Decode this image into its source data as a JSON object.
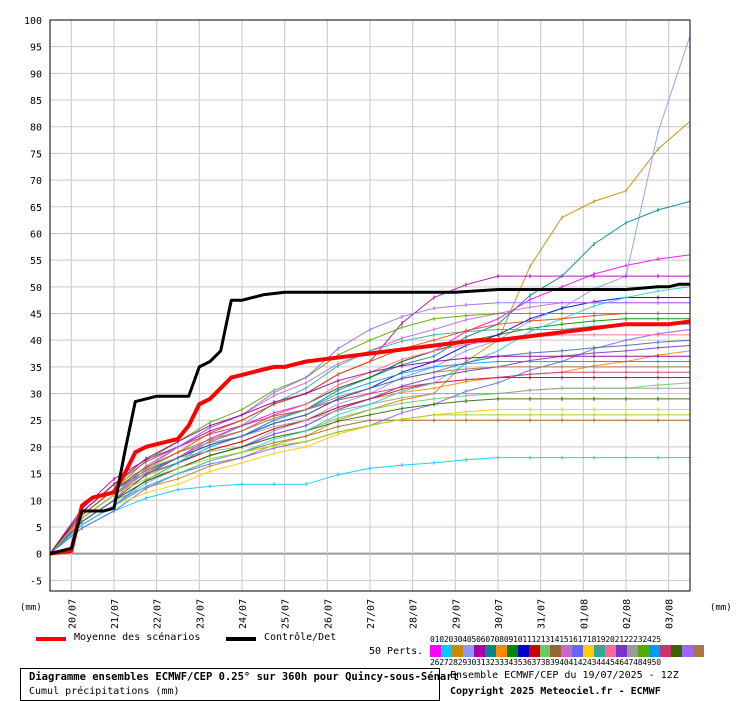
{
  "chart_data": {
    "type": "line",
    "title": "Diagramme ensembles ECMWF/CEP 0.25° sur 360h pour Quincy-sous-Sénart",
    "subtitle": "Cumul précipitations (mm)",
    "xlabel": "",
    "ylabel": "(mm)",
    "ylabel_right": "(mm)",
    "ylim": [
      -7,
      100
    ],
    "y_ticks": [
      -5,
      0,
      5,
      10,
      15,
      20,
      25,
      30,
      35,
      40,
      45,
      50,
      55,
      60,
      65,
      70,
      75,
      80,
      85,
      90,
      95,
      100
    ],
    "x_unit": "step (6h from 19/07 12Z)",
    "xlim": [
      0,
      60
    ],
    "x_tick_labels": [
      "20/07",
      "21/07",
      "22/07",
      "23/07",
      "24/07",
      "25/07",
      "26/07",
      "27/07",
      "28/07",
      "29/07",
      "30/07",
      "31/07",
      "01/08",
      "02/08",
      "03/08"
    ],
    "x_tick_positions": [
      2,
      6,
      10,
      14,
      18,
      22,
      26,
      30,
      34,
      38,
      42,
      46,
      50,
      54,
      58
    ],
    "grid": true,
    "series": [
      {
        "name": "Moyenne des scénarios",
        "color": "#ff0000",
        "width": 4,
        "x": [
          0,
          2,
          3,
          4,
          5,
          6,
          7,
          8,
          9,
          10,
          11,
          12,
          13,
          14,
          15,
          16,
          17,
          18,
          19,
          20,
          21,
          22,
          23,
          24,
          26,
          28,
          30,
          32,
          34,
          36,
          38,
          40,
          42,
          44,
          46,
          48,
          50,
          52,
          54,
          56,
          58,
          60
        ],
        "values": [
          0,
          0.5,
          9,
          10.5,
          11,
          11.5,
          15,
          19,
          20,
          20.5,
          21,
          21.5,
          24,
          28,
          29,
          31,
          33,
          33.5,
          34,
          34.5,
          35,
          35,
          35.5,
          36,
          36.5,
          37,
          37.5,
          38,
          38.5,
          39,
          39.5,
          40,
          40,
          40.5,
          41,
          41.5,
          42,
          42.5,
          43,
          43,
          43,
          43.5
        ]
      },
      {
        "name": "Contrôle/Det",
        "color": "#000000",
        "width": 3,
        "x": [
          0,
          2,
          3,
          4,
          5,
          6,
          7,
          8,
          9,
          10,
          11,
          12,
          13,
          14,
          15,
          16,
          17,
          18,
          19,
          20,
          22,
          24,
          26,
          30,
          34,
          38,
          42,
          46,
          50,
          54,
          57,
          58,
          59,
          60
        ],
        "values": [
          0,
          1,
          8,
          8,
          8,
          8.5,
          19,
          28.5,
          29,
          29.5,
          29.5,
          29.5,
          29.5,
          35,
          36,
          38,
          47.5,
          47.5,
          48,
          48.5,
          49,
          49,
          49,
          49,
          49,
          49,
          49.5,
          49.5,
          49.5,
          49.5,
          50,
          50,
          50.5,
          50.5
        ]
      }
    ],
    "members": [
      {
        "color": "#ff00ff",
        "finals": [
          2,
          12,
          18,
          24,
          28,
          33,
          38,
          44,
          50,
          54,
          56
        ]
      },
      {
        "color": "#00ccff",
        "finals": [
          1.5,
          8,
          12,
          13,
          13,
          16,
          17,
          18,
          18,
          18,
          18
        ]
      },
      {
        "color": "#cc8800",
        "finals": [
          1,
          10,
          14,
          18,
          22,
          27,
          30,
          40,
          63,
          68,
          81
        ]
      },
      {
        "color": "#8899ff",
        "finals": [
          1,
          9,
          16,
          20,
          25,
          30,
          35,
          40,
          46,
          52,
          97
        ]
      },
      {
        "color": "#aa00aa",
        "finals": [
          2,
          14,
          20,
          25,
          30,
          36,
          48,
          52,
          52,
          52,
          52
        ]
      },
      {
        "color": "#008888",
        "finals": [
          1,
          12,
          18,
          22,
          27,
          33,
          37,
          43,
          52,
          62,
          66
        ]
      },
      {
        "color": "#ff8800",
        "finals": [
          2,
          11,
          17,
          21,
          25,
          29,
          31,
          33,
          34,
          36,
          38
        ]
      },
      {
        "color": "#008800",
        "finals": [
          1,
          10,
          18,
          23,
          28,
          33,
          38,
          41,
          43,
          44,
          44
        ]
      },
      {
        "color": "#0000cc",
        "finals": [
          2,
          11,
          18,
          22,
          26,
          31,
          36,
          41,
          46,
          48,
          48
        ]
      },
      {
        "color": "#cc0000",
        "finals": [
          1,
          12,
          17,
          21,
          25,
          29,
          32,
          33,
          33,
          33,
          33
        ]
      },
      {
        "color": "#66cc66",
        "finals": [
          2,
          13,
          18,
          20,
          23,
          27,
          29,
          30,
          31,
          31,
          32
        ]
      },
      {
        "color": "#996633",
        "finals": [
          1,
          9,
          15,
          19,
          22,
          25,
          25,
          25,
          25,
          25,
          25
        ]
      },
      {
        "color": "#cc66cc",
        "finals": [
          2,
          10,
          20,
          26,
          32,
          38,
          42,
          45,
          47,
          47,
          47
        ]
      },
      {
        "color": "#6666ff",
        "finals": [
          1,
          8,
          15,
          18,
          21,
          24,
          28,
          32,
          36,
          40,
          42
        ]
      },
      {
        "color": "#ffcc00",
        "finals": [
          1,
          9,
          13,
          17,
          20,
          24,
          26,
          27,
          27,
          27,
          27
        ]
      },
      {
        "color": "#33aa99",
        "finals": [
          2,
          12,
          17,
          24,
          31,
          38,
          41,
          42,
          42,
          43,
          43
        ]
      },
      {
        "color": "#ff6699",
        "finals": [
          1,
          11,
          18,
          23,
          28,
          34,
          38,
          40,
          41,
          41,
          41
        ]
      },
      {
        "color": "#7733cc",
        "finals": [
          2,
          10,
          16,
          20,
          24,
          29,
          33,
          35,
          37,
          38,
          39
        ]
      },
      {
        "color": "#999999",
        "finals": [
          1,
          11,
          19,
          22,
          25,
          28,
          30,
          30,
          31,
          31,
          31
        ]
      },
      {
        "color": "#55aa00",
        "finals": [
          2,
          12,
          21,
          27,
          33,
          40,
          44,
          45,
          45,
          45,
          45
        ]
      },
      {
        "color": "#0099ff",
        "finals": [
          1,
          9,
          17,
          22,
          27,
          32,
          35,
          36,
          36,
          36,
          36
        ]
      },
      {
        "color": "#cc3366",
        "finals": [
          2,
          13,
          20,
          24,
          27,
          30,
          32,
          33,
          34,
          34,
          34
        ]
      },
      {
        "color": "#336600",
        "finals": [
          1,
          10,
          16,
          20,
          23,
          26,
          28,
          29,
          29,
          29,
          29
        ]
      },
      {
        "color": "#9966ff",
        "finals": [
          1,
          11,
          20,
          26,
          33,
          42,
          46,
          47,
          47,
          47,
          47
        ]
      },
      {
        "color": "#aa7744",
        "finals": [
          2,
          12,
          19,
          23,
          27,
          31,
          34,
          35,
          35,
          35,
          35
        ]
      },
      {
        "color": "#33cccc",
        "finals": [
          1,
          9,
          15,
          19,
          23,
          28,
          32,
          38,
          44,
          48,
          50
        ]
      },
      {
        "color": "#ee4400",
        "finals": [
          2,
          12,
          19,
          25,
          30,
          36,
          40,
          43,
          44,
          45,
          45
        ]
      },
      {
        "color": "#4466aa",
        "finals": [
          1,
          10,
          18,
          22,
          26,
          31,
          34,
          37,
          38,
          39,
          40
        ]
      },
      {
        "color": "#aacc00",
        "finals": [
          2,
          11,
          16,
          19,
          21,
          24,
          26,
          26,
          26,
          26,
          26
        ]
      },
      {
        "color": "#880088",
        "finals": [
          1,
          13,
          21,
          26,
          30,
          34,
          36,
          37,
          37,
          37,
          37
        ]
      }
    ]
  },
  "legend": {
    "mean_label": "Moyenne des scénarios",
    "mean_color": "#ff0000",
    "control_label": "Contrôle/Det",
    "control_color": "#000000",
    "perts_label": "50 Perts.",
    "perts_top": "01020304050607080910111213141516171819202122232425",
    "perts_bottom": "26272829303132333435363738394041424344454647484950"
  },
  "footer": {
    "title": "Diagramme ensembles ECMWF/CEP 0.25° sur 360h pour Quincy-sous-Sénart",
    "subtitle": "Cumul précipitations (mm)",
    "run": "Ensemble ECMWF/CEP du 19/07/2025 - 12Z",
    "copyright": "Copyright 2025 Meteociel.fr - ECMWF"
  }
}
